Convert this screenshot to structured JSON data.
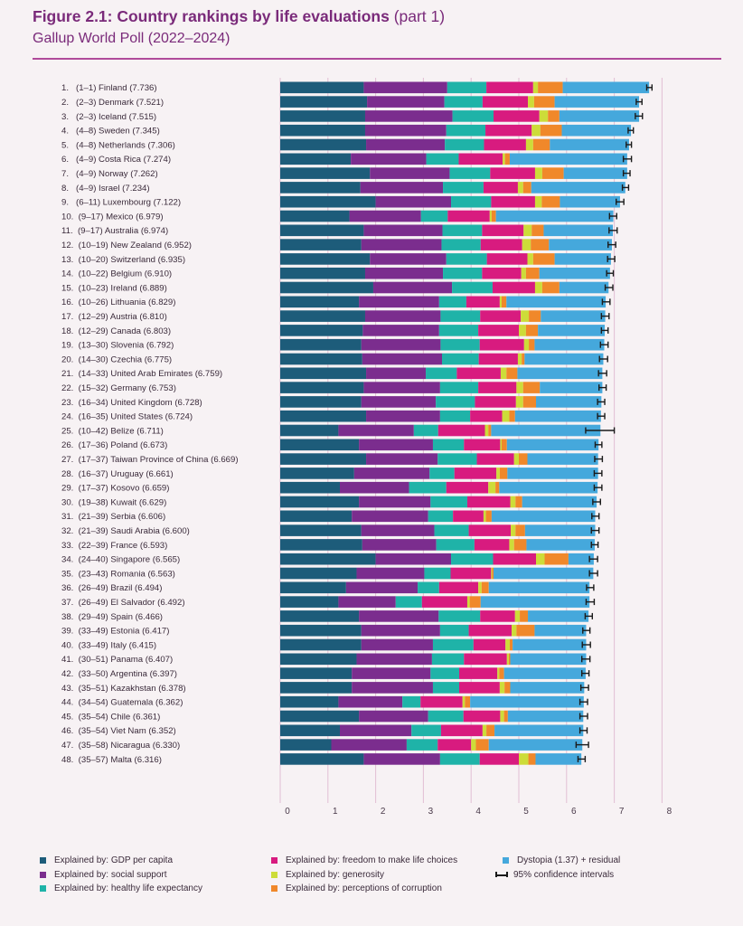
{
  "header": {
    "title": "Figure 2.1: Country rankings by life evaluations",
    "title_part": "(part 1)",
    "subtitle": "Gallup World Poll (2022–2024)"
  },
  "legend": {
    "items": [
      {
        "label": "Explained by: GDP per capita",
        "color": "#1d5c7a"
      },
      {
        "label": "Explained by: social support",
        "color": "#7b2d8e"
      },
      {
        "label": "Explained by: healthy life expectancy",
        "color": "#1fb3a8"
      },
      {
        "label": "Explained by: freedom to make life choices",
        "color": "#d81b7f"
      },
      {
        "label": "Explained by: generosity",
        "color": "#cddc39"
      },
      {
        "label": "Explained by: perceptions of corruption",
        "color": "#f0882a"
      },
      {
        "label": "Dystopia (1.37) + residual",
        "color": "#45a8dc"
      },
      {
        "label": "95% confidence intervals",
        "icon": "ci-bar-icon"
      }
    ]
  },
  "chart_data": {
    "type": "bar",
    "orientation": "horizontal",
    "stacked": true,
    "xlim": [
      0,
      8
    ],
    "x_ticks": [
      "0",
      "1",
      "2",
      "3",
      "4",
      "5",
      "6",
      "7",
      "8"
    ],
    "grid": "vertical",
    "legend_position": "bottom",
    "rows": [
      {
        "label": "1.   (1–1) Finland (7.736)",
        "value": 7.736,
        "segments": [
          1.75,
          1.75,
          0.82,
          0.98,
          0.1,
          0.52,
          1.81
        ],
        "ci": [
          7.68,
          7.79
        ]
      },
      {
        "label": "2.   (2–3) Denmark (7.521)",
        "value": 7.521,
        "segments": [
          1.82,
          1.62,
          0.8,
          0.95,
          0.13,
          0.43,
          1.77
        ],
        "ci": [
          7.46,
          7.58
        ]
      },
      {
        "label": "3.   (2–3) Iceland (7.515)",
        "value": 7.515,
        "segments": [
          1.78,
          1.83,
          0.86,
          0.96,
          0.18,
          0.24,
          1.67
        ],
        "ci": [
          7.44,
          7.59
        ]
      },
      {
        "label": "4.   (4–8) Sweden (7.345)",
        "value": 7.345,
        "segments": [
          1.78,
          1.7,
          0.82,
          0.97,
          0.18,
          0.45,
          1.45
        ],
        "ci": [
          7.29,
          7.4
        ]
      },
      {
        "label": "5.   (4–8) Netherlands (7.306)",
        "value": 7.306,
        "segments": [
          1.8,
          1.65,
          0.82,
          0.88,
          0.15,
          0.35,
          1.66
        ],
        "ci": [
          7.25,
          7.36
        ]
      },
      {
        "label": "6.   (4–9) Costa Rica (7.274)",
        "value": 7.274,
        "segments": [
          1.48,
          1.58,
          0.68,
          0.92,
          0.05,
          0.1,
          2.46
        ],
        "ci": [
          7.19,
          7.36
        ]
      },
      {
        "label": "7.   (4–9) Norway (7.262)",
        "value": 7.262,
        "segments": [
          1.88,
          1.67,
          0.85,
          0.94,
          0.15,
          0.45,
          1.33
        ],
        "ci": [
          7.19,
          7.33
        ]
      },
      {
        "label": "8.   (4–9) Israel (7.234)",
        "value": 7.234,
        "segments": [
          1.68,
          1.73,
          0.85,
          0.72,
          0.11,
          0.17,
          1.97
        ],
        "ci": [
          7.17,
          7.3
        ]
      },
      {
        "label": "9.   (6–11) Luxembourg (7.122)",
        "value": 7.122,
        "segments": [
          2.0,
          1.58,
          0.84,
          0.92,
          0.14,
          0.38,
          1.26
        ],
        "ci": [
          7.04,
          7.2
        ]
      },
      {
        "label": "10.  (9–17) Mexico (6.979)",
        "value": 6.979,
        "segments": [
          1.45,
          1.5,
          0.56,
          0.88,
          0.04,
          0.09,
          2.46
        ],
        "ci": [
          6.9,
          7.05
        ]
      },
      {
        "label": "11.  (9–17) Australia (6.974)",
        "value": 6.974,
        "segments": [
          1.75,
          1.65,
          0.83,
          0.87,
          0.17,
          0.25,
          1.45
        ],
        "ci": [
          6.89,
          7.06
        ]
      },
      {
        "label": "12.  (10–19) New Zealand (6.952)",
        "value": 6.952,
        "segments": [
          1.7,
          1.68,
          0.82,
          0.87,
          0.18,
          0.38,
          1.32
        ],
        "ci": [
          6.87,
          7.03
        ]
      },
      {
        "label": "13.  (10–20) Switzerland (6.935)",
        "value": 6.935,
        "segments": [
          1.88,
          1.6,
          0.85,
          0.85,
          0.12,
          0.45,
          1.18
        ],
        "ci": [
          6.86,
          7.01
        ]
      },
      {
        "label": "14.  (10–22) Belgium (6.910)",
        "value": 6.91,
        "segments": [
          1.78,
          1.63,
          0.82,
          0.82,
          0.1,
          0.28,
          1.48
        ],
        "ci": [
          6.84,
          6.98
        ]
      },
      {
        "label": "15.  (10–23) Ireland (6.889)",
        "value": 6.889,
        "segments": [
          1.95,
          1.65,
          0.85,
          0.89,
          0.15,
          0.36,
          1.03
        ],
        "ci": [
          6.81,
          6.97
        ]
      },
      {
        "label": "16.  (10–26) Lithuania (6.829)",
        "value": 6.829,
        "segments": [
          1.65,
          1.68,
          0.57,
          0.7,
          0.04,
          0.1,
          2.08
        ],
        "ci": [
          6.75,
          6.91
        ]
      },
      {
        "label": "17.  (12–29) Austria (6.810)",
        "value": 6.81,
        "segments": [
          1.78,
          1.58,
          0.83,
          0.85,
          0.17,
          0.25,
          1.35
        ],
        "ci": [
          6.73,
          6.89
        ]
      },
      {
        "label": "18.  (12–29) Canada (6.803)",
        "value": 6.803,
        "segments": [
          1.73,
          1.6,
          0.82,
          0.85,
          0.15,
          0.25,
          1.4
        ],
        "ci": [
          6.73,
          6.87
        ]
      },
      {
        "label": "19.  (13–30) Slovenia (6.792)",
        "value": 6.792,
        "segments": [
          1.7,
          1.66,
          0.82,
          0.93,
          0.1,
          0.12,
          1.46
        ],
        "ci": [
          6.71,
          6.87
        ]
      },
      {
        "label": "20.  (14–30) Czechia (6.775)",
        "value": 6.775,
        "segments": [
          1.72,
          1.67,
          0.77,
          0.82,
          0.08,
          0.06,
          1.65
        ],
        "ci": [
          6.69,
          6.86
        ]
      },
      {
        "label": "21.  (14–33) United Arab Emirates (6.759)",
        "value": 6.759,
        "segments": [
          1.8,
          1.25,
          0.65,
          0.92,
          0.12,
          0.23,
          1.78
        ],
        "ci": [
          6.67,
          6.84
        ]
      },
      {
        "label": "22.  (15–32) Germany (6.753)",
        "value": 6.753,
        "segments": [
          1.75,
          1.6,
          0.8,
          0.8,
          0.14,
          0.35,
          1.31
        ],
        "ci": [
          6.68,
          6.83
        ]
      },
      {
        "label": "23.  (16–34) United Kingdom (6.728)",
        "value": 6.728,
        "segments": [
          1.7,
          1.56,
          0.82,
          0.86,
          0.15,
          0.27,
          1.37
        ],
        "ci": [
          6.65,
          6.8
        ]
      },
      {
        "label": "24.  (16–35) United States (6.724)",
        "value": 6.724,
        "segments": [
          1.8,
          1.55,
          0.63,
          0.67,
          0.15,
          0.12,
          1.8
        ],
        "ci": [
          6.65,
          6.8
        ]
      },
      {
        "label": "25.  (10–42) Belize (6.711)",
        "value": 6.711,
        "segments": [
          1.22,
          1.58,
          0.51,
          0.98,
          0.07,
          0.06,
          2.29
        ],
        "ci": [
          6.4,
          7.0
        ]
      },
      {
        "label": "26.  (17–36) Poland (6.673)",
        "value": 6.673,
        "segments": [
          1.65,
          1.55,
          0.65,
          0.76,
          0.03,
          0.11,
          1.92
        ],
        "ci": [
          6.6,
          6.74
        ]
      },
      {
        "label": "27.  (17–37) Taiwan Province of China (6.669)",
        "value": 6.669,
        "segments": [
          1.8,
          1.5,
          0.82,
          0.78,
          0.1,
          0.18,
          1.48
        ],
        "ci": [
          6.59,
          6.75
        ]
      },
      {
        "label": "28.  (16–37) Uruguay (6.661)",
        "value": 6.661,
        "segments": [
          1.55,
          1.58,
          0.52,
          0.88,
          0.07,
          0.16,
          1.9
        ],
        "ci": [
          6.58,
          6.74
        ]
      },
      {
        "label": "29.  (17–37) Kosovo (6.659)",
        "value": 6.659,
        "segments": [
          1.25,
          1.45,
          0.78,
          0.88,
          0.15,
          0.08,
          2.06
        ],
        "ci": [
          6.58,
          6.74
        ]
      },
      {
        "label": "30.  (19–38) Kuwait (6.629)",
        "value": 6.629,
        "segments": [
          1.65,
          1.5,
          0.77,
          0.9,
          0.11,
          0.14,
          1.56
        ],
        "ci": [
          6.55,
          6.71
        ]
      },
      {
        "label": "31.  (21–39) Serbia (6.606)",
        "value": 6.606,
        "segments": [
          1.5,
          1.6,
          0.52,
          0.64,
          0.05,
          0.12,
          2.17
        ],
        "ci": [
          6.53,
          6.68
        ]
      },
      {
        "label": "32.  (21–39) Saudi Arabia (6.600)",
        "value": 6.6,
        "segments": [
          1.7,
          1.53,
          0.72,
          0.88,
          0.1,
          0.2,
          1.47
        ],
        "ci": [
          6.52,
          6.68
        ]
      },
      {
        "label": "33.  (22–39) France (6.593)",
        "value": 6.593,
        "segments": [
          1.72,
          1.55,
          0.8,
          0.73,
          0.1,
          0.26,
          1.43
        ],
        "ci": [
          6.52,
          6.66
        ]
      },
      {
        "label": "34.  (24–40) Singapore (6.565)",
        "value": 6.565,
        "segments": [
          2.0,
          1.58,
          0.88,
          0.9,
          0.18,
          0.5,
          0.53
        ],
        "ci": [
          6.48,
          6.65
        ]
      },
      {
        "label": "35.  (23–43) Romania (6.563)",
        "value": 6.563,
        "segments": [
          1.6,
          1.42,
          0.55,
          0.85,
          0.02,
          0.03,
          2.09
        ],
        "ci": [
          6.48,
          6.65
        ]
      },
      {
        "label": "36.  (26–49) Brazil (6.494)",
        "value": 6.494,
        "segments": [
          1.38,
          1.5,
          0.45,
          0.82,
          0.07,
          0.15,
          2.11
        ],
        "ci": [
          6.42,
          6.57
        ]
      },
      {
        "label": "37.  (26–49) El Salvador (6.492)",
        "value": 6.492,
        "segments": [
          1.22,
          1.2,
          0.55,
          0.95,
          0.05,
          0.23,
          2.28
        ],
        "ci": [
          6.41,
          6.58
        ]
      },
      {
        "label": "38.  (29–49) Spain (6.466)",
        "value": 6.466,
        "segments": [
          1.65,
          1.67,
          0.87,
          0.73,
          0.1,
          0.17,
          1.27
        ],
        "ci": [
          6.39,
          6.54
        ]
      },
      {
        "label": "39.  (33–49) Estonia (6.417)",
        "value": 6.417,
        "segments": [
          1.7,
          1.65,
          0.6,
          0.9,
          0.1,
          0.38,
          1.08
        ],
        "ci": [
          6.34,
          6.49
        ]
      },
      {
        "label": "40.  (33–49) Italy (6.415)",
        "value": 6.415,
        "segments": [
          1.7,
          1.5,
          0.85,
          0.67,
          0.09,
          0.06,
          1.54
        ],
        "ci": [
          6.33,
          6.5
        ]
      },
      {
        "label": "41.  (30–51) Panama (6.407)",
        "value": 6.407,
        "segments": [
          1.6,
          1.58,
          0.67,
          0.9,
          0.04,
          0.03,
          1.59
        ],
        "ci": [
          6.32,
          6.49
        ]
      },
      {
        "label": "42.  (33–50) Argentina (6.397)",
        "value": 6.397,
        "segments": [
          1.5,
          1.65,
          0.6,
          0.8,
          0.04,
          0.1,
          1.71
        ],
        "ci": [
          6.32,
          6.47
        ]
      },
      {
        "label": "43.  (35–51) Kazakhstan (6.378)",
        "value": 6.378,
        "segments": [
          1.5,
          1.7,
          0.55,
          0.85,
          0.1,
          0.12,
          1.55
        ],
        "ci": [
          6.3,
          6.46
        ]
      },
      {
        "label": "44.  (34–54) Guatemala (6.362)",
        "value": 6.362,
        "segments": [
          1.22,
          1.34,
          0.38,
          0.88,
          0.05,
          0.11,
          2.38
        ],
        "ci": [
          6.28,
          6.44
        ]
      },
      {
        "label": "45.  (35–54) Chile (6.361)",
        "value": 6.361,
        "segments": [
          1.65,
          1.45,
          0.74,
          0.77,
          0.08,
          0.08,
          1.58
        ],
        "ci": [
          6.28,
          6.44
        ]
      },
      {
        "label": "46.  (35–54) Viet Nam (6.352)",
        "value": 6.352,
        "segments": [
          1.25,
          1.5,
          0.62,
          0.87,
          0.08,
          0.17,
          1.86
        ],
        "ci": [
          6.28,
          6.43
        ]
      },
      {
        "label": "47.  (35–58) Nicaragua (6.330)",
        "value": 6.33,
        "segments": [
          1.07,
          1.58,
          0.65,
          0.7,
          0.1,
          0.27,
          1.96
        ],
        "ci": [
          6.2,
          6.46
        ]
      },
      {
        "label": "48.  (35–57) Malta (6.316)",
        "value": 6.316,
        "segments": [
          1.75,
          1.6,
          0.83,
          0.82,
          0.2,
          0.15,
          0.96
        ],
        "ci": [
          6.24,
          6.39
        ]
      }
    ]
  }
}
